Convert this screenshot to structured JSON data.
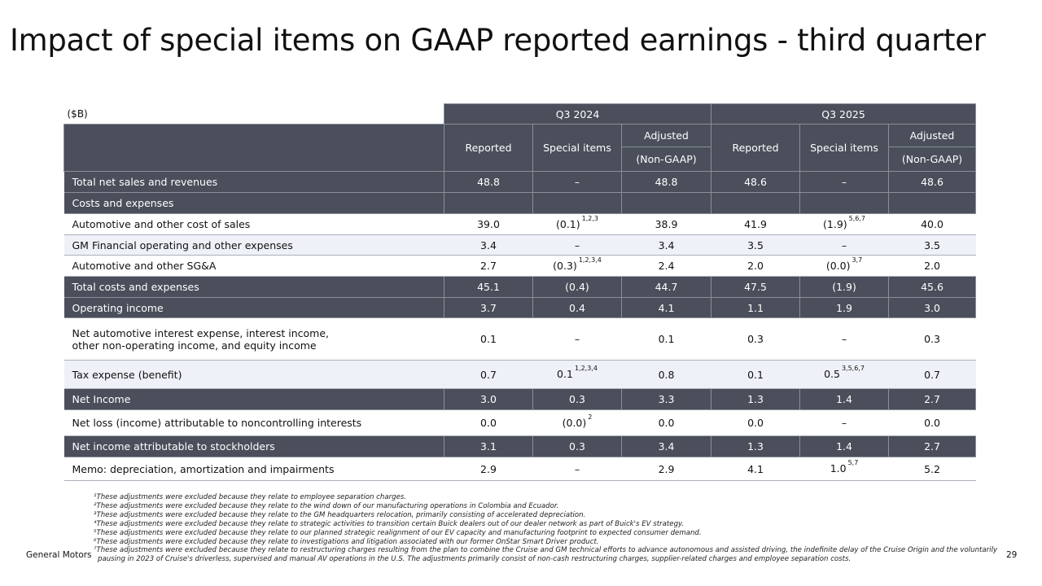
{
  "title": "Impact of special items on GAAP reported earnings - third quarter",
  "unit_label": "($B)",
  "periods": [
    "Q3 2024",
    "Q3 2025"
  ],
  "columns": {
    "reported": "Reported",
    "special": "Special items",
    "adjusted_1": "Adjusted",
    "adjusted_2": "(Non-GAAP)"
  },
  "rows": [
    {
      "label": "Total net sales and revenues",
      "style": "dark",
      "values": [
        "48.8",
        "–",
        "48.8",
        "48.6",
        "–",
        "48.6"
      ],
      "notes": [
        "",
        "",
        "",
        "",
        "",
        ""
      ]
    },
    {
      "label": "Costs and expenses",
      "style": "dark",
      "values": [
        "",
        "",
        "",
        "",
        "",
        ""
      ],
      "notes": [
        "",
        "",
        "",
        "",
        "",
        ""
      ]
    },
    {
      "label": "Automotive and other cost of sales",
      "style": "white",
      "values": [
        "39.0",
        "(0.1)",
        "38.9",
        "41.9",
        "(1.9)",
        "40.0"
      ],
      "notes": [
        "",
        "1,2,3",
        "",
        "",
        "5,6,7",
        ""
      ]
    },
    {
      "label": "GM Financial operating and other expenses",
      "style": "light",
      "values": [
        "3.4",
        "–",
        "3.4",
        "3.5",
        "–",
        "3.5"
      ],
      "notes": [
        "",
        "",
        "",
        "",
        "",
        ""
      ]
    },
    {
      "label": "Automotive and other SG&A",
      "style": "white",
      "values": [
        "2.7",
        "(0.3)",
        "2.4",
        "2.0",
        "(0.0)",
        "2.0"
      ],
      "notes": [
        "",
        "1,2,3,4",
        "",
        "",
        "3,7",
        ""
      ]
    },
    {
      "label": "Total costs and expenses",
      "style": "dark",
      "values": [
        "45.1",
        "(0.4)",
        "44.7",
        "47.5",
        "(1.9)",
        "45.6"
      ],
      "notes": [
        "",
        "",
        "",
        "",
        "",
        ""
      ]
    },
    {
      "label": "Operating income",
      "style": "dark",
      "values": [
        "3.7",
        "0.4",
        "4.1",
        "1.1",
        "1.9",
        "3.0"
      ],
      "notes": [
        "",
        "",
        "",
        "",
        "",
        ""
      ]
    },
    {
      "label": "Net automotive interest expense, interest income,",
      "label2": "other non-operating income, and equity income",
      "style": "white",
      "values": [
        "0.1",
        "–",
        "0.1",
        "0.3",
        "–",
        "0.3"
      ],
      "notes": [
        "",
        "",
        "",
        "",
        "",
        ""
      ]
    },
    {
      "label": "Tax expense (benefit)",
      "style": "light",
      "values": [
        "0.7",
        "0.1",
        "0.8",
        "0.1",
        "0.5",
        "0.7"
      ],
      "notes": [
        "",
        "1,2,3,4",
        "",
        "",
        "3,5,6,7",
        ""
      ]
    },
    {
      "label": "Net Income",
      "style": "dark",
      "values": [
        "3.0",
        "0.3",
        "3.3",
        "1.3",
        "1.4",
        "2.7"
      ],
      "notes": [
        "",
        "",
        "",
        "",
        "",
        ""
      ]
    },
    {
      "label": "Net loss (income) attributable to noncontrolling interests",
      "style": "white",
      "values": [
        "0.0",
        "(0.0)",
        "0.0",
        "0.0",
        "–",
        "0.0"
      ],
      "notes": [
        "",
        "2",
        "",
        "",
        "",
        ""
      ]
    },
    {
      "label": "Net income attributable to stockholders",
      "style": "dark",
      "values": [
        "3.1",
        "0.3",
        "3.4",
        "1.3",
        "1.4",
        "2.7"
      ],
      "notes": [
        "",
        "",
        "",
        "",
        "",
        ""
      ]
    },
    {
      "label": "Memo: depreciation, amortization and impairments",
      "style": "white",
      "values": [
        "2.9",
        "–",
        "2.9",
        "4.1",
        "1.0",
        "5.2"
      ],
      "notes": [
        "",
        "",
        "",
        "",
        "5,7",
        ""
      ]
    }
  ],
  "footnotes": [
    "¹These adjustments were excluded because they relate to employee separation charges.",
    "²These adjustments were excluded because they relate to the wind down of our manufacturing operations in Colombia and Ecuador.",
    "³These adjustments were excluded because they relate to the GM headquarters relocation, primarily consisting of accelerated depreciation.",
    "⁴These adjustments were excluded because they relate to strategic activities to transition certain Buick dealers out of our dealer network as part of Buick's EV strategy.",
    "⁵These adjustments were excluded because they relate to our planned strategic realignment of our EV capacity and manufacturing footprint to expected consumer demand.",
    "⁶These adjustments were excluded because they relate to investigations and litigation associated with our former OnStar Smart Driver product.",
    "⁷These adjustments were excluded because they relate to restructuring charges resulting from the plan to combine the Cruise and GM technical efforts to advance autonomous and assisted driving, the indefinite delay of the Cruise Origin and the voluntarily",
    "pausing in 2023 of Cruise's driverless, supervised and manual AV operations in the U.S. The adjustments primarily consist of non-cash restructuring charges, supplier-related charges and employee separation costs."
  ],
  "footer": {
    "brand": "General Motors",
    "page": "29"
  }
}
